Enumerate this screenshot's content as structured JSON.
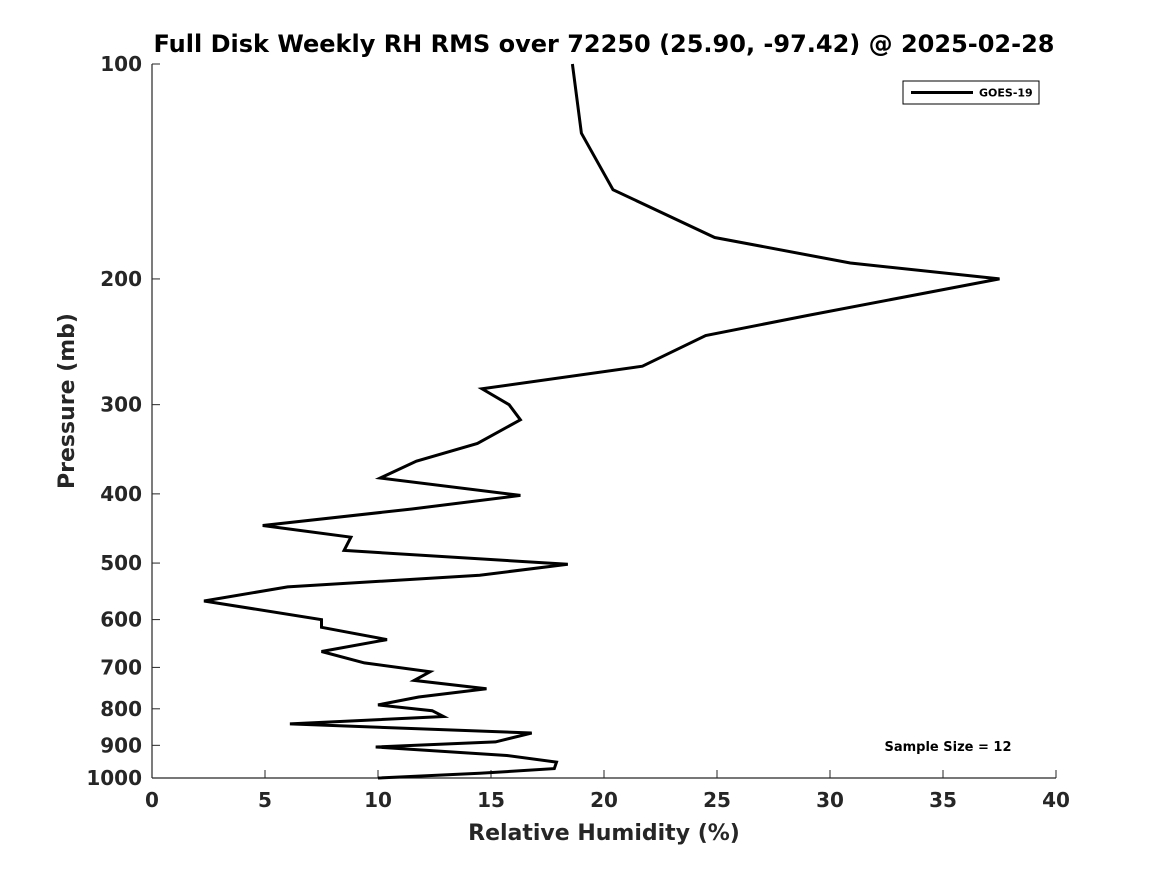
{
  "chart_data": {
    "type": "line",
    "title": "Full Disk Weekly RH RMS over 72250 (25.90, -97.42) @ 2025-02-28",
    "xlabel": "Relative Humidity (%)",
    "ylabel": "Pressure (mb)",
    "xlim": [
      0,
      40
    ],
    "ylim": [
      1000,
      100
    ],
    "y_scale": "log",
    "y_reversed": true,
    "x_ticks": [
      0,
      5,
      10,
      15,
      20,
      25,
      30,
      35,
      40
    ],
    "y_ticks": [
      100,
      200,
      300,
      400,
      500,
      600,
      700,
      800,
      900,
      1000
    ],
    "legend_placement": "top-right",
    "annotation": "Sample Size = 12",
    "series": [
      {
        "name": "GOES-19",
        "color": "#000000",
        "points": [
          [
            18.6,
            100
          ],
          [
            19.0,
            125
          ],
          [
            20.4,
            150
          ],
          [
            24.9,
            175
          ],
          [
            30.9,
            190
          ],
          [
            37.5,
            200
          ],
          [
            29.0,
            225
          ],
          [
            24.5,
            240
          ],
          [
            21.7,
            265
          ],
          [
            14.6,
            285
          ],
          [
            15.8,
            300
          ],
          [
            16.3,
            315
          ],
          [
            14.4,
            340
          ],
          [
            11.7,
            360
          ],
          [
            10.1,
            380
          ],
          [
            16.3,
            402
          ],
          [
            11.5,
            420
          ],
          [
            4.9,
            443
          ],
          [
            8.8,
            460
          ],
          [
            8.5,
            480
          ],
          [
            18.4,
            502
          ],
          [
            14.5,
            520
          ],
          [
            6.0,
            540
          ],
          [
            2.3,
            565
          ],
          [
            7.5,
            600
          ],
          [
            7.5,
            615
          ],
          [
            10.4,
            640
          ],
          [
            7.5,
            665
          ],
          [
            9.4,
            690
          ],
          [
            12.3,
            710
          ],
          [
            11.6,
            730
          ],
          [
            14.8,
            750
          ],
          [
            11.8,
            770
          ],
          [
            10.0,
            790
          ],
          [
            12.4,
            805
          ],
          [
            12.9,
            820
          ],
          [
            6.1,
            840
          ],
          [
            16.8,
            865
          ],
          [
            15.2,
            890
          ],
          [
            9.9,
            905
          ],
          [
            15.7,
            930
          ],
          [
            17.9,
            950
          ],
          [
            17.8,
            970
          ],
          [
            14.5,
            985
          ],
          [
            10.0,
            1000
          ]
        ]
      }
    ]
  }
}
